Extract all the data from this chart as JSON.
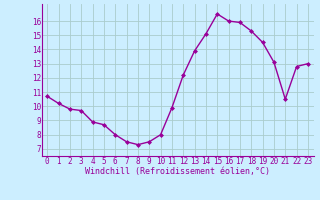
{
  "x": [
    0,
    1,
    2,
    3,
    4,
    5,
    6,
    7,
    8,
    9,
    10,
    11,
    12,
    13,
    14,
    15,
    16,
    17,
    18,
    19,
    20,
    21,
    22,
    23
  ],
  "y": [
    10.7,
    10.2,
    9.8,
    9.7,
    8.9,
    8.7,
    8.0,
    7.5,
    7.3,
    7.5,
    8.0,
    9.9,
    12.2,
    13.9,
    15.1,
    16.5,
    16.0,
    15.9,
    15.3,
    14.5,
    13.1,
    10.5,
    12.8,
    13.0
  ],
  "line_color": "#990099",
  "marker": "D",
  "marker_size": 2.0,
  "line_width": 1.0,
  "bg_color": "#cceeff",
  "grid_color": "#aacccc",
  "xlabel": "Windchill (Refroidissement éolien,°C)",
  "xlabel_fontsize": 6.0,
  "xlabel_color": "#990099",
  "ytick_labels": [
    "7",
    "8",
    "9",
    "10",
    "11",
    "12",
    "13",
    "14",
    "15",
    "16"
  ],
  "ytick_values": [
    7,
    8,
    9,
    10,
    11,
    12,
    13,
    14,
    15,
    16
  ],
  "xtick_labels": [
    "0",
    "1",
    "2",
    "3",
    "4",
    "5",
    "6",
    "7",
    "8",
    "9",
    "10",
    "11",
    "12",
    "13",
    "14",
    "15",
    "16",
    "17",
    "18",
    "19",
    "20",
    "21",
    "22",
    "23"
  ],
  "ylim": [
    6.5,
    17.2
  ],
  "xlim": [
    -0.5,
    23.5
  ],
  "tick_color": "#990099",
  "tick_fontsize": 5.5
}
